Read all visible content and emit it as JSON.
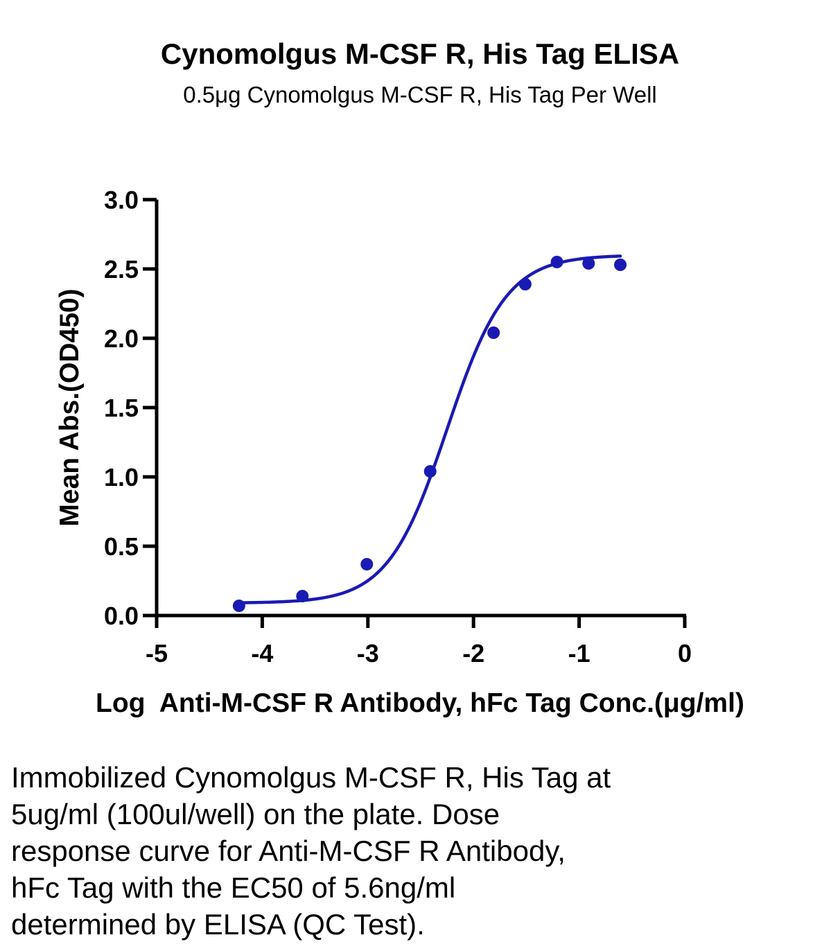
{
  "chart_data": {
    "type": "scatter",
    "title": "Cynomolgus M-CSF R, His Tag ELISA",
    "subtitle": "0.5μg Cynomolgus M-CSF R, His Tag Per Well",
    "xlabel": "Log  Anti-M-CSF R Antibody, hFc Tag Conc.(μg/ml)",
    "ylabel": "Mean Abs.(OD450)",
    "xlim": [
      -5,
      0
    ],
    "ylim": [
      0,
      3.0
    ],
    "x_ticks": [
      "-5",
      "-4",
      "-3",
      "-2",
      "-1",
      "0"
    ],
    "y_ticks": [
      "0.0",
      "0.5",
      "1.0",
      "1.5",
      "2.0",
      "2.5",
      "3.0"
    ],
    "grid": false,
    "series": [
      {
        "color": "#1a1ab5",
        "points": [
          {
            "x": -4.22,
            "y": 0.07
          },
          {
            "x": -3.62,
            "y": 0.14
          },
          {
            "x": -3.01,
            "y": 0.37
          },
          {
            "x": -2.41,
            "y": 1.04
          },
          {
            "x": -1.81,
            "y": 2.04
          },
          {
            "x": -1.51,
            "y": 2.39
          },
          {
            "x": -1.21,
            "y": 2.55
          },
          {
            "x": -0.91,
            "y": 2.54
          },
          {
            "x": -0.61,
            "y": 2.53
          }
        ],
        "fit_curve": {
          "model": "4PL",
          "bottom": 0.09,
          "top": 2.6,
          "log_ec50": -2.25,
          "hill_slope": 1.55,
          "x_range": [
            -4.22,
            -0.61
          ]
        }
      }
    ]
  },
  "caption": {
    "lines": [
      "Immobilized Cynomolgus M-CSF R, His Tag at",
      "5ug/ml (100ul/well) on the plate. Dose",
      "response curve for Anti-M-CSF R Antibody,",
      "hFc Tag with the EC50 of 5.6ng/ml",
      "determined by ELISA (QC Test)."
    ]
  }
}
